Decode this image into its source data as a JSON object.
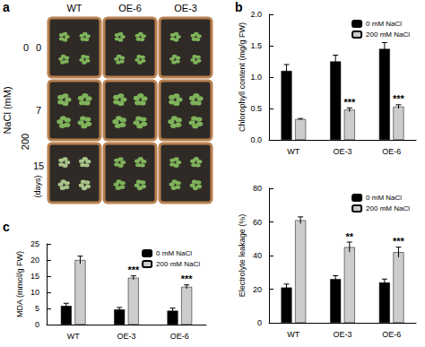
{
  "panel_labels": [
    "a",
    "b",
    "c"
  ],
  "photo_panel": {
    "columns": [
      "WT",
      "OE-6",
      "OE-3"
    ],
    "row_axis_title": "NaCl (mM)",
    "nacl_levels": [
      {
        "label": "0",
        "rows": 1
      },
      {
        "label": "200",
        "rows": 2
      }
    ],
    "days": [
      "0",
      "7",
      "15"
    ],
    "days_unit": "(days)"
  },
  "chart_data": [
    {
      "type": "bar",
      "categories": [
        "WT",
        "OE-3",
        "OE-6"
      ],
      "y_label": "Chlorophyll content (mg/g FW)",
      "ylim": [
        0,
        2
      ],
      "yticks": [
        {
          "value": 0,
          "label": "0.0"
        },
        {
          "value": 0.5,
          "label": "0.5"
        },
        {
          "value": 1,
          "label": "1.0"
        },
        {
          "value": 1.5,
          "label": "1.5"
        },
        {
          "value": 2,
          "label": "2.0"
        }
      ],
      "grid": false,
      "legend": "upper right",
      "series": [
        {
          "name": "0 mM NaCl",
          "color": "#000000",
          "values": [
            1.1,
            1.25,
            1.45
          ],
          "errors": [
            0.1,
            0.1,
            0.1
          ]
        },
        {
          "name": "200 mM NaCl",
          "color": "#cccccc",
          "values": [
            0.33,
            0.48,
            0.53
          ],
          "errors": [
            0.01,
            0.03,
            0.03
          ]
        }
      ],
      "annotations": [
        {
          "category": "OE-3",
          "series": "200 mM NaCl",
          "text": "***"
        },
        {
          "category": "OE-6",
          "series": "200 mM NaCl",
          "text": "***"
        }
      ]
    },
    {
      "type": "bar",
      "categories": [
        "WT",
        "OE-3",
        "OE-6"
      ],
      "y_label": "Electrolyte leakage (%)",
      "ylim": [
        0,
        80
      ],
      "yticks": [
        0,
        20,
        40,
        60,
        80
      ],
      "grid": false,
      "legend": "upper right",
      "series": [
        {
          "name": "0 mM NaCl",
          "color": "#000000",
          "values": [
            21,
            26,
            24
          ],
          "errors": [
            2,
            2,
            2
          ]
        },
        {
          "name": "200 mM NaCl",
          "color": "#cccccc",
          "values": [
            61,
            45,
            42
          ],
          "errors": [
            2,
            3,
            3
          ]
        }
      ],
      "annotations": [
        {
          "category": "OE-3",
          "series": "200 mM NaCl",
          "text": "**"
        },
        {
          "category": "OE-6",
          "series": "200 mM NaCl",
          "text": "***"
        }
      ]
    },
    {
      "type": "bar",
      "categories": [
        "WT",
        "OE-3",
        "OE-6"
      ],
      "y_label": "MDA (mmol/g FW)",
      "ylim": [
        0,
        25
      ],
      "yticks": [
        0,
        5,
        10,
        15,
        20,
        25
      ],
      "grid": false,
      "legend": "upper right",
      "series": [
        {
          "name": "0 mM NaCl",
          "color": "#000000",
          "values": [
            5.8,
            4.7,
            4.3
          ],
          "errors": [
            0.8,
            0.6,
            0.8
          ]
        },
        {
          "name": "200 mM NaCl",
          "color": "#cccccc",
          "values": [
            20,
            14.5,
            11.7
          ],
          "errors": [
            1.2,
            0.6,
            0.6
          ]
        }
      ],
      "annotations": [
        {
          "category": "OE-3",
          "series": "200 mM NaCl",
          "text": "***"
        },
        {
          "category": "OE-6",
          "series": "200 mM NaCl",
          "text": "***"
        }
      ]
    }
  ]
}
